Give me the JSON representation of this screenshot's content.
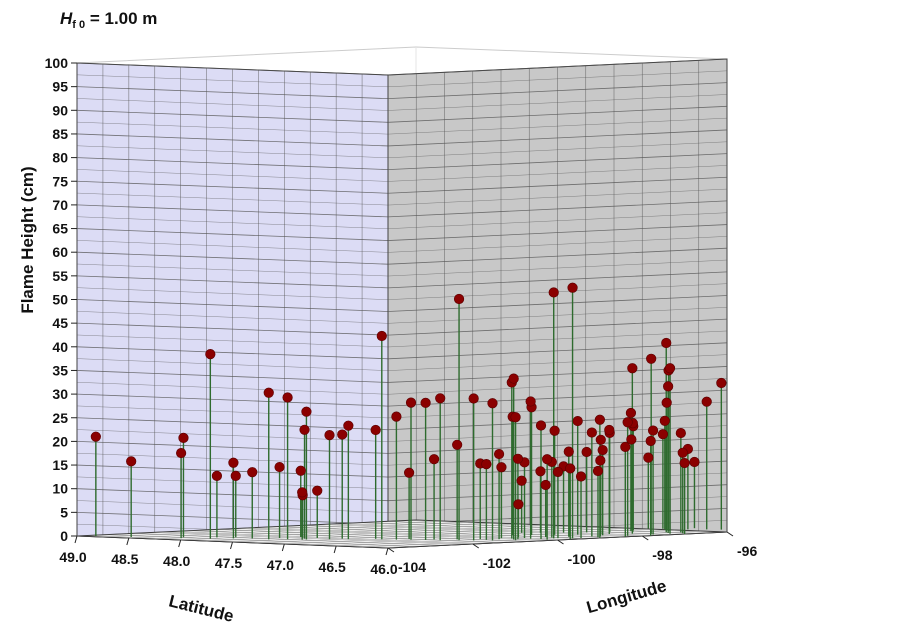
{
  "title": {
    "letter": "H",
    "subscript": "f 0",
    "suffix": " = 1.00 m"
  },
  "chart_data": {
    "type": "scatter",
    "subtype": "3d-stem",
    "title": "Hf0 = 1.00 m",
    "xlabel": "Latitude",
    "ylabel": "Longitude",
    "zlabel": "Flame Height (cm)",
    "xlim": [
      46.0,
      49.0
    ],
    "ylim": [
      -104,
      -96
    ],
    "zlim": [
      0,
      100
    ],
    "x_ticks": [
      "49.0",
      "48.5",
      "48.0",
      "47.5",
      "47.0",
      "46.5",
      "46.0"
    ],
    "y_ticks": [
      "-104",
      "-102",
      "-100",
      "-98",
      "-96"
    ],
    "z_ticks": [
      "0",
      "5",
      "10",
      "15",
      "20",
      "25",
      "30",
      "35",
      "40",
      "45",
      "50",
      "55",
      "60",
      "65",
      "70",
      "75",
      "80",
      "85",
      "90",
      "95",
      "100"
    ],
    "grid": true,
    "colors": {
      "marker": "#8b0000",
      "stem": "#2e6b2e",
      "left_wall": "#dcdcf5",
      "right_wall": "#c8c8c8",
      "floor": "#eeeeee",
      "grid": "#555555"
    },
    "points": [
      [
        48.9,
        -103.8,
        21
      ],
      [
        48.6,
        -103.7,
        16
      ],
      [
        48.3,
        -103.2,
        21
      ],
      [
        48.2,
        -103.5,
        18
      ],
      [
        48.0,
        -103.3,
        39
      ],
      [
        48.1,
        -102.9,
        13
      ],
      [
        47.8,
        -102.8,
        14
      ],
      [
        47.9,
        -103.0,
        16
      ],
      [
        48.0,
        -102.7,
        13
      ],
      [
        47.7,
        -102.4,
        15
      ],
      [
        47.6,
        -102.9,
        31
      ],
      [
        47.5,
        -102.7,
        30
      ],
      [
        47.4,
        -102.5,
        27
      ],
      [
        47.5,
        -102.3,
        23
      ],
      [
        47.3,
        -102.2,
        22
      ],
      [
        47.2,
        -102.0,
        24
      ],
      [
        47.3,
        -101.9,
        22
      ],
      [
        47.1,
        -101.6,
        23
      ],
      [
        47.4,
        -102.6,
        10
      ],
      [
        47.6,
        -102.1,
        9
      ],
      [
        47.7,
        -101.9,
        14
      ],
      [
        47.5,
        -102.0,
        10
      ],
      [
        47.0,
        -101.7,
        43
      ],
      [
        46.9,
        -101.6,
        26
      ],
      [
        46.8,
        -101.5,
        29
      ],
      [
        46.7,
        -101.4,
        29
      ],
      [
        46.6,
        -101.3,
        30
      ],
      [
        46.5,
        -101.1,
        51
      ],
      [
        46.4,
        -101.0,
        30
      ],
      [
        46.3,
        -100.8,
        29
      ],
      [
        46.2,
        -100.5,
        26
      ],
      [
        46.3,
        -100.3,
        34
      ],
      [
        46.4,
        -100.1,
        33
      ],
      [
        46.3,
        -99.9,
        29
      ],
      [
        46.2,
        -99.6,
        52
      ],
      [
        46.1,
        -99.4,
        53
      ],
      [
        46.2,
        -99.9,
        24
      ],
      [
        46.4,
        -100.7,
        16
      ],
      [
        46.6,
        -100.9,
        20
      ],
      [
        46.7,
        -101.2,
        17
      ],
      [
        46.9,
        -101.3,
        14
      ],
      [
        46.5,
        -100.6,
        16
      ],
      [
        46.4,
        -100.4,
        18
      ],
      [
        46.3,
        -100.2,
        17
      ],
      [
        46.5,
        -100.1,
        15
      ],
      [
        46.4,
        -99.8,
        16
      ],
      [
        46.2,
        -99.5,
        14
      ],
      [
        46.1,
        -99.2,
        13
      ],
      [
        46.3,
        -99.0,
        18
      ],
      [
        46.4,
        -99.3,
        11
      ],
      [
        46.5,
        -99.7,
        7
      ],
      [
        46.1,
        -98.8,
        14
      ],
      [
        46.2,
        -98.5,
        16
      ],
      [
        46.3,
        -98.2,
        18
      ],
      [
        46.4,
        -98.0,
        20
      ],
      [
        46.5,
        -98.3,
        24
      ],
      [
        46.6,
        -98.6,
        22
      ],
      [
        46.7,
        -98.9,
        27
      ],
      [
        46.8,
        -99.1,
        25
      ],
      [
        46.4,
        -97.8,
        22
      ],
      [
        46.3,
        -97.5,
        35
      ],
      [
        46.2,
        -97.3,
        37
      ],
      [
        46.1,
        -97.1,
        35
      ],
      [
        46.2,
        -96.9,
        31
      ],
      [
        46.3,
        -96.7,
        40
      ],
      [
        46.5,
        -97.0,
        23
      ],
      [
        46.6,
        -97.3,
        21
      ],
      [
        46.7,
        -97.6,
        17
      ],
      [
        46.8,
        -97.9,
        14
      ],
      [
        46.9,
        -98.2,
        13
      ],
      [
        47.0,
        -98.4,
        11
      ],
      [
        46.6,
        -96.8,
        25
      ],
      [
        46.7,
        -96.5,
        22
      ],
      [
        46.8,
        -96.3,
        19
      ],
      [
        46.4,
        -96.4,
        34
      ],
      [
        46.5,
        -96.2,
        27
      ],
      [
        46.6,
        -96.0,
        23
      ],
      [
        46.7,
        -95.8,
        20
      ],
      [
        46.8,
        -95.9,
        15
      ],
      [
        46.5,
        -95.7,
        17
      ],
      [
        46.4,
        -95.5,
        27
      ],
      [
        46.3,
        -95.4,
        31
      ],
      [
        46.6,
        -95.3,
        14
      ],
      [
        46.2,
        -96.6,
        21
      ],
      [
        46.1,
        -96.8,
        17
      ],
      [
        46.0,
        -97.0,
        15
      ],
      [
        46.1,
        -97.5,
        22
      ],
      [
        46.0,
        -97.8,
        20
      ],
      [
        46.1,
        -98.1,
        24
      ],
      [
        46.0,
        -98.4,
        19
      ],
      [
        46.2,
        -98.7,
        22
      ],
      [
        46.0,
        -99.0,
        25
      ],
      [
        46.3,
        -99.4,
        16
      ],
      [
        46.1,
        -100.0,
        17
      ],
      [
        46.0,
        -99.7,
        15
      ]
    ]
  }
}
